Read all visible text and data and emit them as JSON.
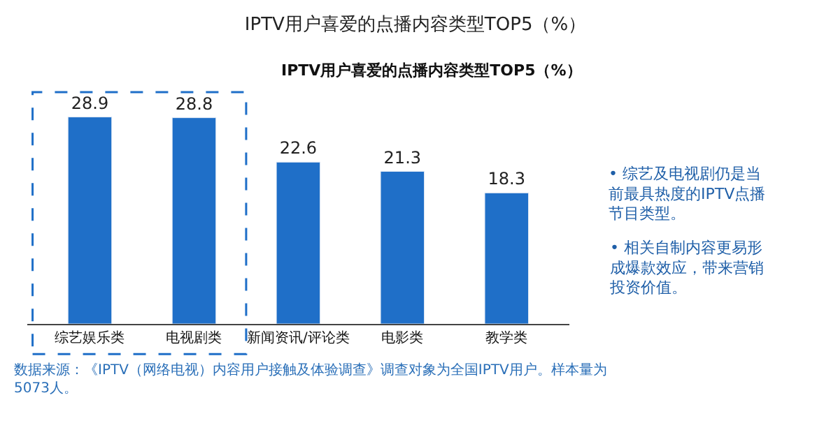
{
  "chart_data": {
    "type": "bar",
    "title": "IPTV用户喜爱的点播内容类型TOP5（%）",
    "subtitle": "IPTV用户喜爱的点播内容类型TOP5（%）",
    "categories": [
      "综艺娱乐类",
      "电视剧类",
      "新闻资讯/评论类",
      "电影类",
      "教学类"
    ],
    "values": [
      28.9,
      28.8,
      22.6,
      21.3,
      18.3
    ],
    "color": "#1f6fc8",
    "data_labels": true,
    "annotations": [
      "• 综艺及电视剧仍是当前最具热度的IPTV点播节目类型。",
      "• 相关自制内容更易形成爆款效应，带来营销投资价值。",
      "数据来源：《IPTV（网络电视）内容用户接触及体验调查》调查对象为全国IPTV用户。样本量为5073人。"
    ]
  }
}
